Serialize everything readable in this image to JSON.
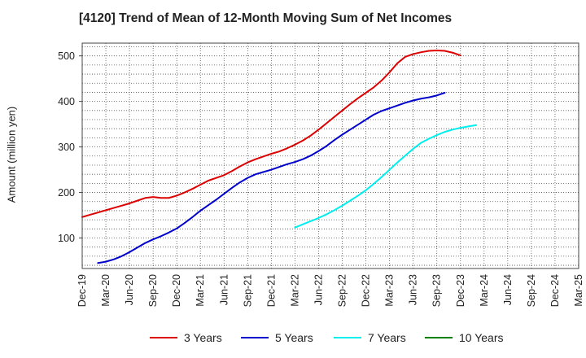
{
  "title": "[4120]  Trend of Mean of 12-Month Moving Sum of Net Incomes",
  "chart_data": {
    "type": "line",
    "title": "[4120]  Trend of Mean of 12-Month Moving Sum of Net Incomes",
    "xlabel": "",
    "ylabel": "Amount (million yen)",
    "x_tick_labels": [
      "Dec-19",
      "Mar-20",
      "Jun-20",
      "Sep-20",
      "Dec-20",
      "Mar-21",
      "Jun-21",
      "Sep-21",
      "Dec-21",
      "Mar-22",
      "Jun-22",
      "Sep-22",
      "Dec-22",
      "Mar-23",
      "Jun-23",
      "Sep-23",
      "Dec-23",
      "Mar-24",
      "Jun-24",
      "Sep-24",
      "Dec-24",
      "Mar-25"
    ],
    "y_ticks": [
      100,
      200,
      300,
      400,
      500
    ],
    "ylim": [
      33,
      528
    ],
    "grid": true,
    "legend_position": "bottom",
    "series": [
      {
        "name": "3 Years",
        "color": "#dd0000",
        "start_index": 0,
        "values": [
          146,
          151,
          156,
          161,
          166,
          171,
          176,
          182,
          188,
          190,
          188,
          188,
          193,
          200,
          208,
          217,
          226,
          232,
          238,
          247,
          257,
          266,
          273,
          279,
          285,
          290,
          297,
          305,
          314,
          325,
          338,
          352,
          366,
          380,
          394,
          407,
          419,
          431,
          446,
          464,
          484,
          498,
          504,
          508,
          511,
          512,
          511,
          507,
          501
        ]
      },
      {
        "name": "5 Years",
        "color": "#0000cc",
        "start_index": 2,
        "values": [
          45,
          48,
          53,
          60,
          69,
          79,
          89,
          97,
          104,
          112,
          121,
          133,
          146,
          160,
          172,
          184,
          197,
          210,
          222,
          232,
          240,
          245,
          250,
          256,
          262,
          267,
          273,
          281,
          291,
          302,
          315,
          327,
          338,
          349,
          360,
          371,
          379,
          385,
          391,
          397,
          402,
          406,
          409,
          413,
          419
        ]
      },
      {
        "name": "7 Years",
        "color": "#00eeee",
        "start_index": 27,
        "values": [
          123,
          130,
          137,
          144,
          152,
          161,
          171,
          182,
          193,
          205,
          219,
          234,
          250,
          266,
          281,
          296,
          309,
          318,
          326,
          333,
          338,
          342,
          345,
          348
        ]
      },
      {
        "name": "10 Years",
        "color": "#008000",
        "start_index": 0,
        "values": []
      }
    ]
  }
}
